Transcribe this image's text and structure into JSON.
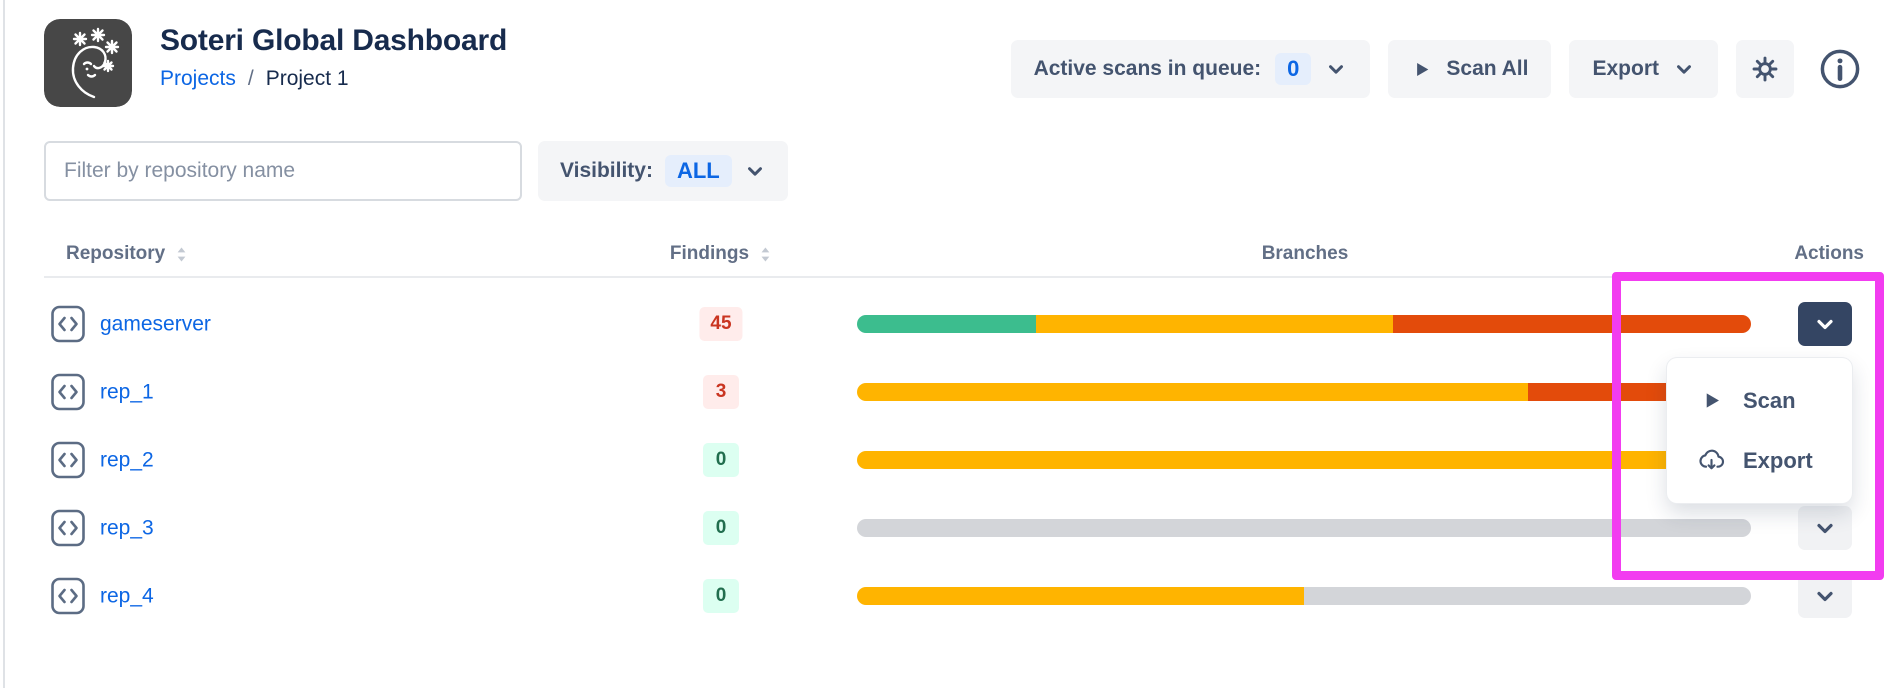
{
  "header": {
    "app_title": "Soteri Global Dashboard",
    "breadcrumb": {
      "projects": "Projects",
      "separator": "/",
      "current": "Project 1"
    },
    "queue": {
      "label": "Active scans in queue:",
      "count": "0"
    },
    "scan_all_label": "Scan All",
    "export_label": "Export"
  },
  "filters": {
    "placeholder": "Filter by repository name",
    "visibility_label": "Visibility:",
    "visibility_value": "ALL"
  },
  "table": {
    "headers": [
      {
        "label": "Repository",
        "sortable": true
      },
      {
        "label": "Findings",
        "sortable": true
      },
      {
        "label": "Branches",
        "sortable": false
      },
      {
        "label": "Actions",
        "sortable": false
      }
    ],
    "rows": [
      {
        "name": "gameserver",
        "findings": "45",
        "findings_tone": "danger",
        "action": "open",
        "segments": [
          {
            "tone": "green",
            "pct": 20
          },
          {
            "tone": "yellow",
            "pct": 40
          },
          {
            "tone": "red",
            "pct": 40
          }
        ]
      },
      {
        "name": "rep_1",
        "findings": "3",
        "findings_tone": "danger",
        "action": "default",
        "segments": [
          {
            "tone": "yellow",
            "pct": 75
          },
          {
            "tone": "red",
            "pct": 25
          }
        ]
      },
      {
        "name": "rep_2",
        "findings": "0",
        "findings_tone": "success",
        "action": "default",
        "segments": [
          {
            "tone": "yellow",
            "pct": 100
          }
        ]
      },
      {
        "name": "rep_3",
        "findings": "0",
        "findings_tone": "success",
        "action": "default",
        "segments": [
          {
            "tone": "empty",
            "pct": 100
          }
        ]
      },
      {
        "name": "rep_4",
        "findings": "0",
        "findings_tone": "success",
        "action": "default",
        "segments": [
          {
            "tone": "yellow",
            "pct": 50
          },
          {
            "tone": "empty",
            "pct": 50
          }
        ]
      }
    ]
  },
  "menu": {
    "items": [
      {
        "label": "Scan",
        "icon": "play-icon"
      },
      {
        "label": "Export",
        "icon": "cloud-download-icon"
      }
    ]
  },
  "colors": {
    "segment_green": "#3cbd8e",
    "segment_yellow": "#ffb400",
    "segment_red": "#e34b0b",
    "segment_empty": "#d3d5d9",
    "accent_blue": "#0c66e4",
    "danger_text": "#ca3521",
    "danger_bg": "#ffeceb",
    "success_text": "#216e4e",
    "success_bg": "#dcfff1",
    "action_open_bg": "#344563",
    "highlight": "#f23cf0"
  }
}
